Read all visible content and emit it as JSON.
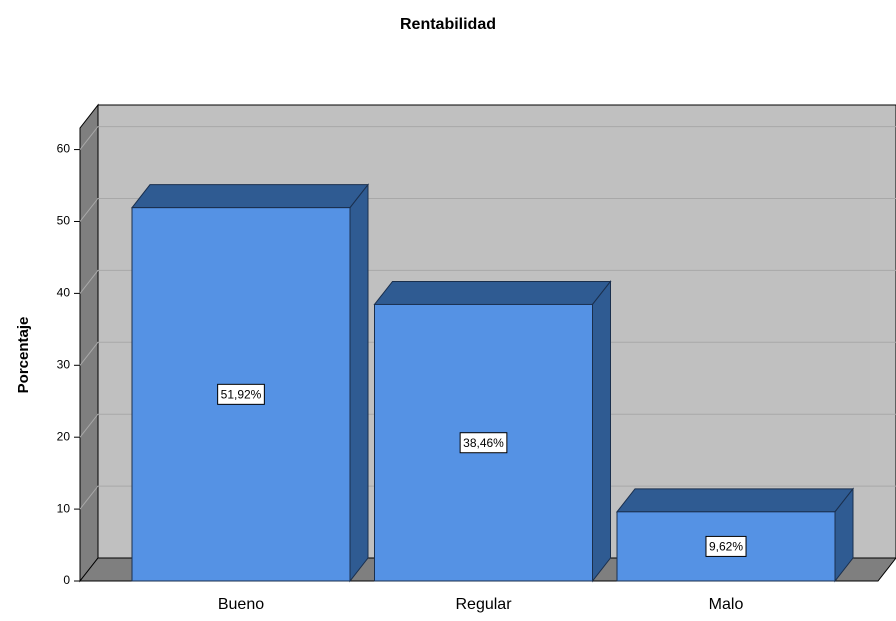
{
  "chart_data": {
    "type": "bar",
    "title": "Rentabilidad",
    "ylabel": "Porcentaje",
    "categories": [
      "Bueno",
      "Regular",
      "Malo"
    ],
    "values": [
      51.92,
      38.46,
      9.62
    ],
    "value_labels": [
      "51,92%",
      "38,46%",
      "9,62%"
    ],
    "color": "#5592e4",
    "ylim": [
      0,
      63
    ],
    "yticks": [
      0,
      10,
      20,
      30,
      40,
      50,
      60
    ],
    "grid": true
  }
}
